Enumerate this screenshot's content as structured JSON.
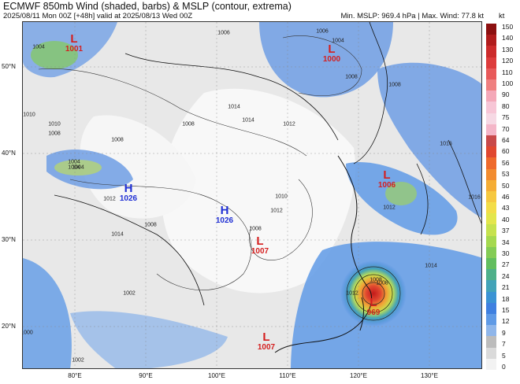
{
  "title": "ECMWF 850mb Wind (shaded, barbs) & MSLP (contour, extrema)",
  "subtitle": "2025/08/11 Mon 00Z [+48h] valid at 2025/08/13 Wed 00Z",
  "stats": "Min. MSLP: 969.4 hPa | Max. Wind: 77.8 kt",
  "colorbar": {
    "unit": "kt",
    "ticks": [
      "150",
      "140",
      "130",
      "120",
      "110",
      "100",
      "90",
      "80",
      "75",
      "70",
      "64",
      "60",
      "56",
      "53",
      "50",
      "46",
      "43",
      "40",
      "37",
      "34",
      "30",
      "27",
      "24",
      "21",
      "18",
      "15",
      "12",
      "9",
      "7",
      "5",
      "0"
    ],
    "colors": [
      "#8c1010",
      "#b01c1c",
      "#cc2b2b",
      "#dd3c3c",
      "#e85a5a",
      "#ef8080",
      "#f4a8b8",
      "#f7c6d6",
      "#f6d9e4",
      "#f4b6c8",
      "#c84a4a",
      "#e04830",
      "#ee6a2c",
      "#f28c30",
      "#f5ad35",
      "#f6c840",
      "#f3dd48",
      "#e3e64c",
      "#c6e24e",
      "#a5d94f",
      "#84cc55",
      "#62be5e",
      "#4eb08a",
      "#43a3b8",
      "#3b93d4",
      "#3f80e0",
      "#5f9ae6",
      "#8fb6ea",
      "#bcbcbc",
      "#dadada",
      "#f2f2f2"
    ]
  },
  "axes": {
    "lat_labels": [
      "50°N",
      "40°N",
      "30°N",
      "20°N"
    ],
    "lon_labels": [
      "80°E",
      "90°E",
      "100°E",
      "110°E",
      "120°E",
      "130°E"
    ]
  },
  "pressure_centers": [
    {
      "type": "L",
      "value": "1001",
      "color": "#d41f1f"
    },
    {
      "type": "L",
      "value": "1000",
      "color": "#d41f1f"
    },
    {
      "type": "L",
      "value": "1006",
      "color": "#d41f1f"
    },
    {
      "type": "L",
      "value": "1007",
      "color": "#d41f1f"
    },
    {
      "type": "L",
      "value": "969",
      "color": "#d41f1f"
    },
    {
      "type": "L",
      "value": "1007",
      "color": "#d41f1f"
    },
    {
      "type": "H",
      "value": "1026",
      "color": "#1f2fd4"
    },
    {
      "type": "H",
      "value": "1026",
      "color": "#1f2fd4"
    }
  ],
  "isobar_labels": [
    "1006",
    "1004",
    "1010",
    "1008",
    "1004",
    "1004",
    "1006",
    "1008",
    "1008",
    "1012",
    "1014",
    "1014",
    "1012",
    "1008",
    "1010",
    "1012",
    "1016",
    "1016",
    "1014",
    "1008",
    "1012",
    "1008",
    "1004",
    "1002",
    "1008",
    "1010",
    "1008",
    "1004",
    "1012",
    "1014",
    "1008",
    "1002",
    "1000"
  ]
}
